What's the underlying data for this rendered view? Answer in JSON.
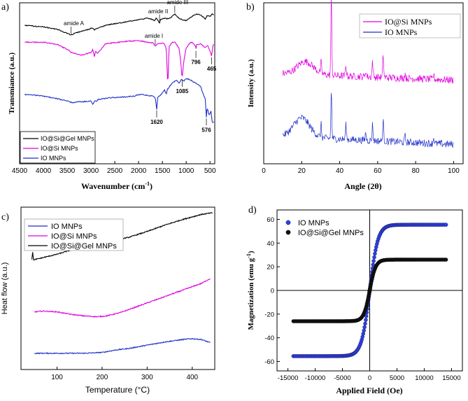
{
  "chart_data": [
    {
      "panel": "a)",
      "type": "line",
      "title": "",
      "xlabel": "Wavenumber (cm",
      "xlabel_sup": "-1",
      "xlabel_end": ")",
      "ylabel": "Transmiance (a.u.)",
      "xlim": [
        4500,
        400
      ],
      "xticks": [
        4500,
        4000,
        3500,
        3000,
        2500,
        2000,
        1500,
        1000,
        500
      ],
      "legend": [
        "IO@Si@Gel MNPs",
        "IO@Si MNPs",
        "IO MNPs"
      ],
      "colors": [
        "#000000",
        "#e000e0",
        "#1f2fc8"
      ],
      "series": [
        {
          "name": "IO@Si@Gel MNPs",
          "x": [
            4400,
            4000,
            3700,
            3500,
            3420,
            3300,
            3100,
            2960,
            2930,
            2880,
            2700,
            2300,
            2000,
            1800,
            1660,
            1630,
            1560,
            1540,
            1450,
            1400,
            1340,
            1240,
            1150,
            1090,
            1000,
            900,
            800,
            700,
            600,
            560,
            500,
            450,
            420
          ],
          "y": [
            0.86,
            0.85,
            0.835,
            0.81,
            0.8,
            0.815,
            0.83,
            0.845,
            0.83,
            0.84,
            0.86,
            0.88,
            0.895,
            0.905,
            0.89,
            0.905,
            0.875,
            0.895,
            0.905,
            0.9,
            0.905,
            0.93,
            0.905,
            0.895,
            0.89,
            0.91,
            0.93,
            0.925,
            0.9,
            0.92,
            0.915,
            0.93,
            0.925
          ]
        },
        {
          "name": "IO@Si MNPs",
          "x": [
            4400,
            4000,
            3700,
            3500,
            3400,
            3200,
            3000,
            2960,
            2930,
            2900,
            2860,
            2700,
            2300,
            2000,
            1900,
            1700,
            1650,
            1600,
            1500,
            1450,
            1420,
            1385,
            1360,
            1300,
            1250,
            1200,
            1150,
            1110,
            1085,
            1050,
            1000,
            950,
            900,
            850,
            800,
            796,
            780,
            700,
            650,
            600,
            550,
            500,
            465,
            440,
            420
          ],
          "y": [
            0.755,
            0.755,
            0.74,
            0.71,
            0.69,
            0.675,
            0.69,
            0.71,
            0.665,
            0.7,
            0.685,
            0.745,
            0.76,
            0.765,
            0.76,
            0.75,
            0.73,
            0.745,
            0.75,
            0.74,
            0.72,
            0.48,
            0.73,
            0.75,
            0.76,
            0.74,
            0.72,
            0.62,
            0.53,
            0.64,
            0.72,
            0.74,
            0.755,
            0.75,
            0.73,
            0.71,
            0.74,
            0.745,
            0.735,
            0.72,
            0.735,
            0.7,
            0.67,
            0.735,
            0.74
          ]
        },
        {
          "name": "IO MNPs",
          "x": [
            4400,
            4100,
            3800,
            3500,
            3400,
            3200,
            3000,
            2960,
            2920,
            2880,
            2850,
            2600,
            2300,
            2100,
            2000,
            1900,
            1800,
            1700,
            1650,
            1620,
            1600,
            1500,
            1450,
            1420,
            1400,
            1300,
            1200,
            1150,
            1100,
            1050,
            1000,
            900,
            800,
            700,
            650,
            600,
            576,
            560,
            520,
            480,
            460,
            440,
            420
          ],
          "y": [
            0.43,
            0.425,
            0.41,
            0.39,
            0.38,
            0.385,
            0.39,
            0.37,
            0.395,
            0.385,
            0.4,
            0.41,
            0.415,
            0.42,
            0.43,
            0.43,
            0.425,
            0.42,
            0.41,
            0.34,
            0.41,
            0.44,
            0.46,
            0.43,
            0.46,
            0.5,
            0.52,
            0.5,
            0.525,
            0.515,
            0.53,
            0.52,
            0.5,
            0.48,
            0.44,
            0.4,
            0.29,
            0.35,
            0.3,
            0.33,
            0.27,
            0.25,
            0.26
          ]
        }
      ],
      "annotations": [
        {
          "text": "amide A",
          "x": 3420,
          "y": 0.8
        },
        {
          "text": "amide II",
          "x": 1560,
          "y": 0.875
        },
        {
          "text": "amide III",
          "x": 1240,
          "y": 0.93
        },
        {
          "text": "amide I",
          "x": 1650,
          "y": 0.73
        },
        {
          "text": "1085",
          "x": 1085,
          "y": 0.53
        },
        {
          "text": "796",
          "x": 796,
          "y": 0.71
        },
        {
          "text": "465",
          "x": 465,
          "y": 0.67
        },
        {
          "text": "1620",
          "x": 1620,
          "y": 0.34
        },
        {
          "text": "576",
          "x": 576,
          "y": 0.29
        }
      ]
    },
    {
      "panel": "b)",
      "type": "line",
      "title": "",
      "xlabel": "Angle (2θ)",
      "ylabel": "Intensity (a.u.)",
      "xlim": [
        0,
        105
      ],
      "xticks": [
        0,
        20,
        40,
        60,
        80,
        100
      ],
      "legend": [
        "IO@Si MNPs",
        "IO MNPs"
      ],
      "colors": [
        "#e000e0",
        "#1f2fc8"
      ],
      "series": [
        {
          "name": "IO@Si MNPs",
          "x_range": [
            10,
            100
          ],
          "baseline": [
            0.56,
            0.52
          ],
          "hump": {
            "center": 22,
            "height": 0.08
          },
          "peaks": [
            [
              30.2,
              0.07
            ],
            [
              35.6,
              0.5
            ],
            [
              43.3,
              0.07
            ],
            [
              53.7,
              0.04
            ],
            [
              57.3,
              0.1
            ],
            [
              62.9,
              0.14
            ],
            [
              74.4,
              0.03
            ],
            [
              89.5,
              0.03
            ]
          ]
        },
        {
          "name": "IO MNPs",
          "x_range": [
            10,
            100
          ],
          "baseline": [
            0.17,
            0.12
          ],
          "hump": {
            "center": 20,
            "height": 0.12
          },
          "peaks": [
            [
              30.2,
              0.08
            ],
            [
              35.6,
              0.3
            ],
            [
              43.3,
              0.09
            ],
            [
              53.7,
              0.05
            ],
            [
              57.3,
              0.1
            ],
            [
              62.9,
              0.13
            ],
            [
              74.4,
              0.04
            ],
            [
              89.5,
              0.04
            ]
          ]
        }
      ]
    },
    {
      "panel": "c)",
      "type": "line",
      "title": "",
      "xlabel": "Temperature (°C)",
      "ylabel": "Heat flow (a.u.)",
      "xlim": [
        20,
        450
      ],
      "xticks": [
        100,
        200,
        300,
        400
      ],
      "legend": [
        "IO MNPs",
        "IO@Si MNPs",
        "IO@Si@Gel MNPs"
      ],
      "colors": [
        "#1f2fc8",
        "#e000e0",
        "#000000"
      ],
      "series": [
        {
          "name": "IO MNPs",
          "x": [
            50,
            80,
            120,
            160,
            200,
            230,
            260,
            300,
            340,
            380,
            400,
            420,
            440
          ],
          "y": [
            0.1,
            0.1,
            0.1,
            0.1,
            0.105,
            0.12,
            0.13,
            0.15,
            0.17,
            0.185,
            0.19,
            0.185,
            0.165
          ]
        },
        {
          "name": "IO@Si MNPs",
          "x": [
            50,
            70,
            100,
            130,
            160,
            190,
            210,
            240,
            270,
            300,
            330,
            360,
            390,
            420,
            440
          ],
          "y": [
            0.355,
            0.36,
            0.355,
            0.34,
            0.33,
            0.325,
            0.33,
            0.35,
            0.38,
            0.41,
            0.44,
            0.47,
            0.5,
            0.53,
            0.56
          ]
        },
        {
          "name": "IO@Si@Gel MNPs",
          "x": [
            44,
            46,
            48,
            55,
            70,
            100,
            130,
            160,
            190,
            220,
            260,
            300,
            340,
            380,
            420,
            445
          ],
          "y": [
            0.68,
            0.72,
            0.675,
            0.68,
            0.69,
            0.71,
            0.735,
            0.755,
            0.775,
            0.79,
            0.815,
            0.85,
            0.89,
            0.925,
            0.955,
            0.965
          ]
        }
      ]
    },
    {
      "panel": "d)",
      "type": "scatter",
      "title": "",
      "xlabel": "Applied Field (Oe)",
      "ylabel": "Magnetization (emu g",
      "ylabel_sup": "-1",
      "ylabel_end": ")",
      "xlim": [
        -17000,
        17000
      ],
      "ylim": [
        -68,
        68
      ],
      "xticks": [
        -15000,
        -10000,
        -5000,
        0,
        5000,
        10000,
        15000
      ],
      "yticks": [
        -60,
        -40,
        -20,
        0,
        20,
        40,
        60
      ],
      "legend": [
        "IO MNPs",
        "IO@Si@Gel MNPs"
      ],
      "colors": [
        "#2f3fe6",
        "#111111"
      ],
      "series": [
        {
          "name": "IO MNPs",
          "Ms": 55.5,
          "H0": 1500,
          "x_range": [
            -14000,
            14000
          ]
        },
        {
          "name": "IO@Si@Gel MNPs",
          "Ms": 26.0,
          "H0": 1100,
          "x_range": [
            -14000,
            14000
          ]
        }
      ]
    }
  ]
}
